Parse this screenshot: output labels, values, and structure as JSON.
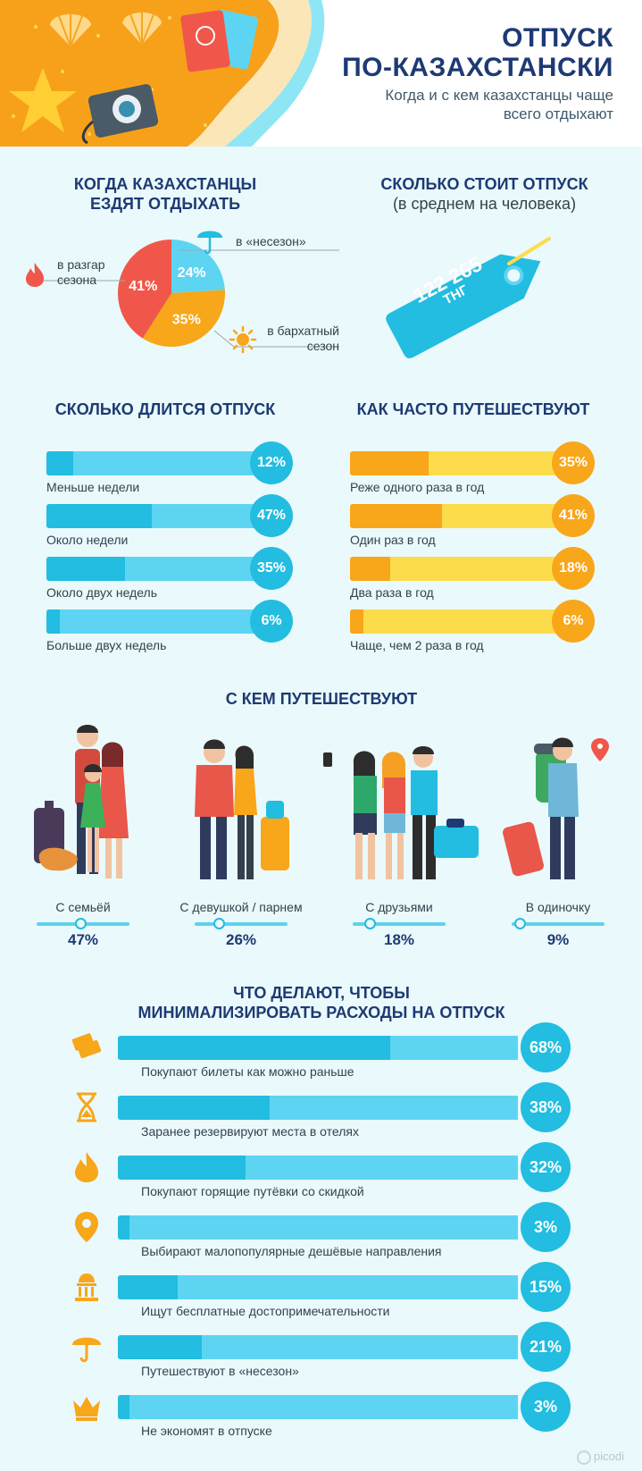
{
  "header": {
    "title_line1": "ОТПУСК",
    "title_line2": "ПО-КАЗАХСТАНСКИ",
    "subtitle": "Когда и с кем казахстанцы чаще всего отдыхают"
  },
  "when": {
    "title_line1": "КОГДА КАЗАХСТАНЦЫ",
    "title_line2": "ЕЗДЯТ ОТДЫХАТЬ",
    "slices": [
      {
        "label": "в разгар сезона",
        "value": 41,
        "display": "41%",
        "color": "#f0574a",
        "icon": "fire-icon"
      },
      {
        "label": "в «несезон»",
        "value": 24,
        "display": "24%",
        "color": "#5dd5f2",
        "icon": "umbrella-icon"
      },
      {
        "label": "в бархатный сезон",
        "value": 35,
        "display": "35%",
        "color": "#f8a61a",
        "icon": "sun-icon"
      }
    ],
    "label_peak_l1": "в разгар",
    "label_peak_l2": "сезона",
    "label_off": "в «несезон»",
    "label_velvet_l1": "в бархатный",
    "label_velvet_l2": "сезон"
  },
  "cost": {
    "title_line1": "СКОЛЬКО СТОИТ ОТПУСК",
    "title_line2": "(в среднем на человека)",
    "amount": "122 265",
    "currency": "ТНГ",
    "tag_color": "#22bde0"
  },
  "duration": {
    "title": "СКОЛЬКО ДЛИТСЯ ОТПУСК",
    "items": [
      {
        "label": "Меньше недели",
        "value": 12,
        "display": "12%"
      },
      {
        "label": "Около недели",
        "value": 47,
        "display": "47%"
      },
      {
        "label": "Около двух недель",
        "value": 35,
        "display": "35%"
      },
      {
        "label": "Больше двух недель",
        "value": 6,
        "display": "6%"
      }
    ]
  },
  "frequency": {
    "title": "КАК ЧАСТО ПУТЕШЕСТВУЮТ",
    "items": [
      {
        "label": "Реже одного раза в год",
        "value": 35,
        "display": "35%"
      },
      {
        "label": "Один раз в год",
        "value": 41,
        "display": "41%"
      },
      {
        "label": "Два раза в год",
        "value": 18,
        "display": "18%"
      },
      {
        "label": "Чаще, чем 2 раза в год",
        "value": 6,
        "display": "6%"
      }
    ]
  },
  "companions": {
    "title": "С КЕМ ПУТЕШЕСТВУЮТ",
    "items": [
      {
        "label": "С семьёй",
        "value": 47,
        "display": "47%"
      },
      {
        "label": "С девушкой / парнем",
        "value": 26,
        "display": "26%"
      },
      {
        "label": "С друзьями",
        "value": 18,
        "display": "18%"
      },
      {
        "label": "В одиночку",
        "value": 9,
        "display": "9%"
      }
    ]
  },
  "savings": {
    "title_line1": "ЧТО ДЕЛАЮТ, ЧТОБЫ",
    "title_line2": "МИНИМАЛИЗИРОВАТЬ РАСХОДЫ НА ОТПУСК",
    "items": [
      {
        "label": "Покупают билеты как можно раньше",
        "value": 68,
        "display": "68%",
        "icon": "tickets-icon"
      },
      {
        "label": "Заранее резервируют места в отелях",
        "value": 38,
        "display": "38%",
        "icon": "hourglass-icon"
      },
      {
        "label": "Покупают горящие путёвки со скидкой",
        "value": 32,
        "display": "32%",
        "icon": "fire-icon"
      },
      {
        "label": "Выбирают малопопулярные дешёвые направления",
        "value": 3,
        "display": "3%",
        "icon": "map-pin-icon"
      },
      {
        "label": "Ищут бесплатные достопримечательности",
        "value": 15,
        "display": "15%",
        "icon": "museum-icon"
      },
      {
        "label": "Путешествуют в «несезон»",
        "value": 21,
        "display": "21%",
        "icon": "umbrella-icon"
      },
      {
        "label": "Не экономят в отпуске",
        "value": 3,
        "display": "3%",
        "icon": "crown-icon"
      }
    ]
  },
  "footer": {
    "brand": "picodi"
  }
}
